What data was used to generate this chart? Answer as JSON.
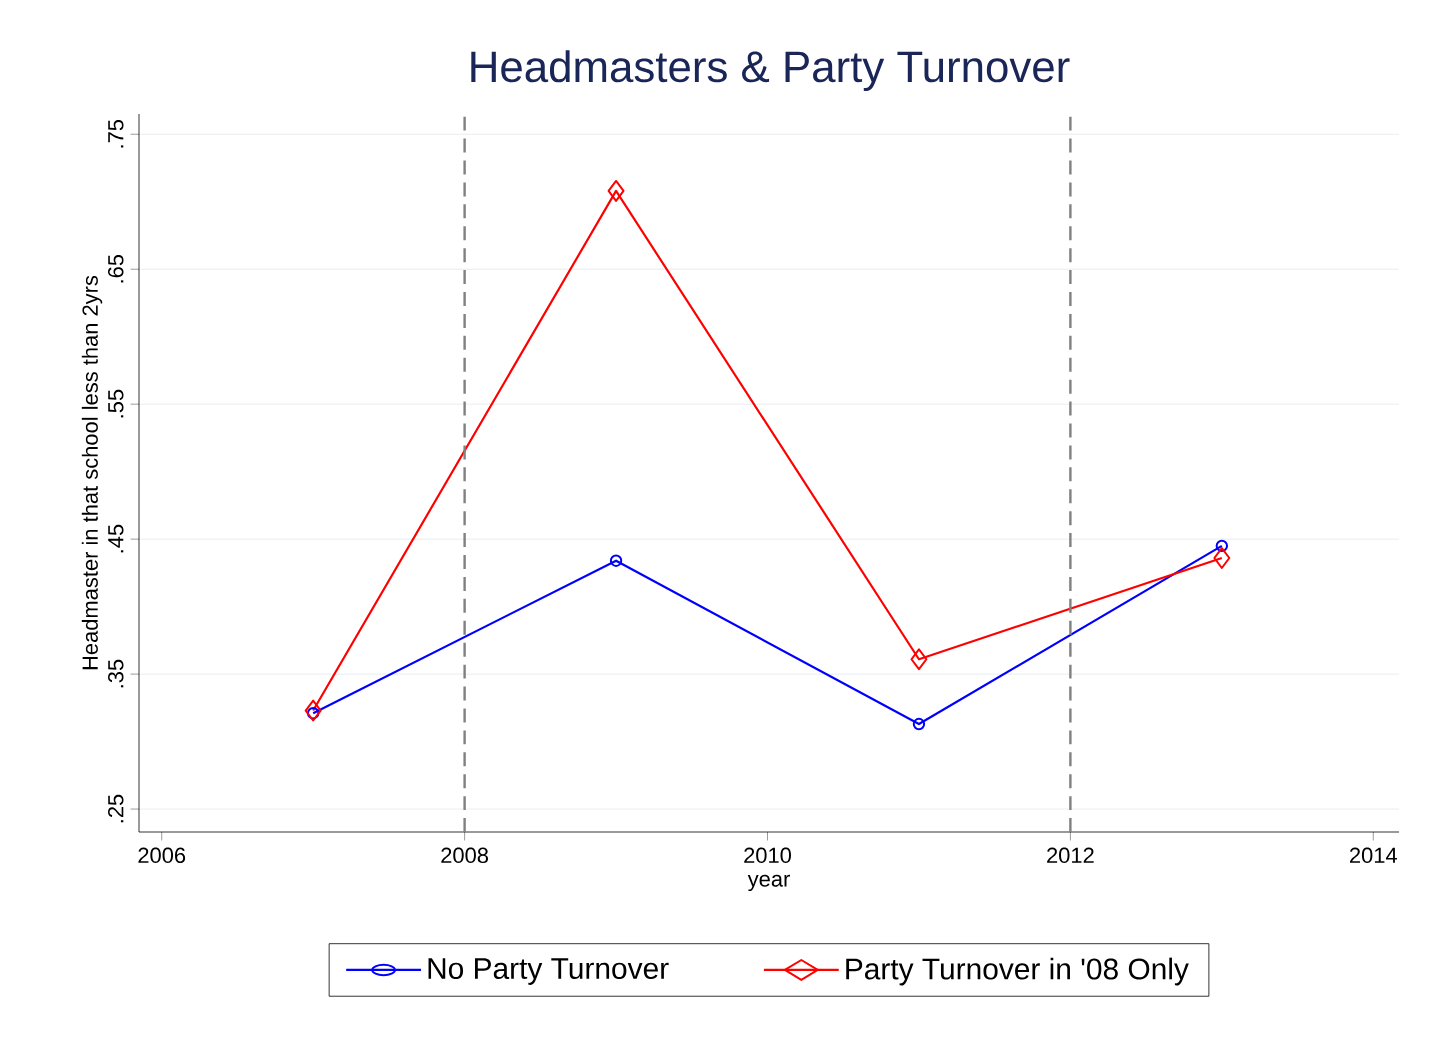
{
  "chart_data": {
    "type": "line",
    "title": "Headmasters & Party Turnover",
    "xlabel": "year",
    "ylabel": "Headmaster in that school less than 2yrs",
    "x": [
      2007,
      2009,
      2011,
      2013
    ],
    "series": [
      {
        "name": "No Party Turnover",
        "color": "#0000ff",
        "marker": "circle",
        "values": [
          0.321,
          0.434,
          0.313,
          0.445
        ]
      },
      {
        "name": "Party Turnover in '08 Only",
        "color": "#ff0000",
        "marker": "diamond",
        "values": [
          0.323,
          0.708,
          0.361,
          0.436
        ]
      }
    ],
    "xlim": [
      2005.85,
      2014.17
    ],
    "ylim": [
      0.233,
      0.765
    ],
    "xticks": [
      2006,
      2008,
      2010,
      2012,
      2014
    ],
    "yticks": [
      {
        "value": 0.25,
        "label": ".25"
      },
      {
        "value": 0.35,
        "label": ".35"
      },
      {
        "value": 0.45,
        "label": ".45"
      },
      {
        "value": 0.55,
        "label": ".55"
      },
      {
        "value": 0.65,
        "label": ".65"
      },
      {
        "value": 0.75,
        "label": ".75"
      }
    ],
    "ref_lines": [
      {
        "axis": "x",
        "value": 2008,
        "color": "#808080",
        "line_style": "dashed"
      },
      {
        "axis": "x",
        "value": 2012,
        "color": "#808080",
        "line_style": "dashed"
      }
    ],
    "grid": "y",
    "legend": "bottom",
    "line_style": "solid"
  }
}
